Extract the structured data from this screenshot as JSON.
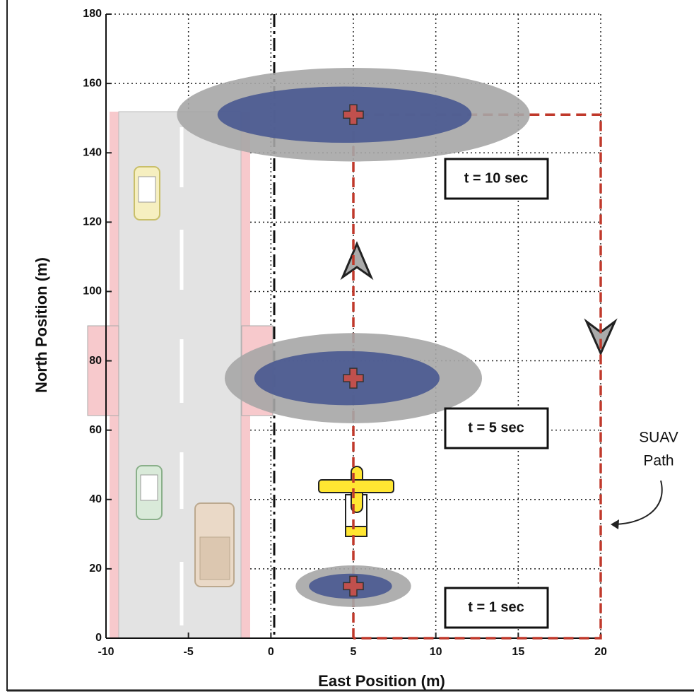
{
  "chart_data": {
    "type": "ellipse",
    "xlabel": "East Position  (m)",
    "ylabel": "North Position  (m)",
    "xlim": [
      -10,
      20
    ],
    "ylim": [
      0,
      180
    ],
    "xticks": [
      -10,
      -5,
      0,
      5,
      10,
      15,
      20
    ],
    "yticks": [
      0,
      20,
      40,
      60,
      80,
      100,
      120,
      140,
      160,
      180
    ],
    "grid": true,
    "ellipse_color": "#a6a6a6",
    "cloud_color": "#4b5a91",
    "marker_color": "#c0504d",
    "ellipses": [
      {
        "label": "t = 1 sec",
        "x": 5,
        "y": 15,
        "rx": 3.5,
        "ry": 6
      },
      {
        "label": "t = 5 sec",
        "x": 5,
        "y": 75,
        "rx": 7.8,
        "ry": 13
      },
      {
        "label": "t = 10 sec",
        "x": 5,
        "y": 151,
        "rx": 10.7,
        "ry": 13.5
      }
    ],
    "path": {
      "x": [
        5,
        5,
        20,
        20,
        5
      ],
      "y": [
        0,
        151,
        151,
        0,
        0
      ],
      "color": "#c0392b"
    },
    "path_label": [
      "SUAV",
      "Path"
    ]
  }
}
